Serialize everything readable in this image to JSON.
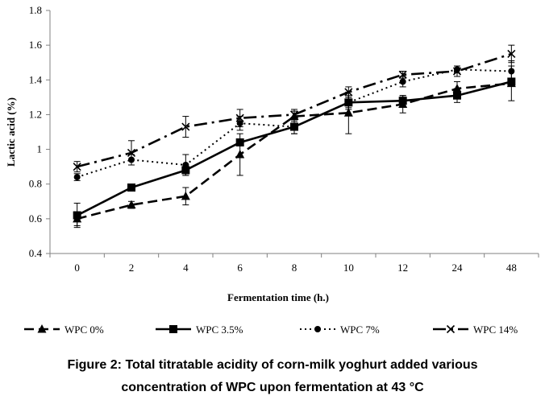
{
  "chart_data": {
    "type": "line",
    "title": "",
    "xlabel": "Fermentation time (h.)",
    "ylabel": "Lactic acid (%)",
    "categories": [
      "0",
      "2",
      "4",
      "6",
      "8",
      "10",
      "12",
      "24",
      "48"
    ],
    "yticks": [
      "0.4",
      "0.6",
      "0.8",
      "1",
      "1.2",
      "1.4",
      "1.6",
      "1.8"
    ],
    "ylim": [
      0.4,
      1.8
    ],
    "grid": false,
    "legend_position": "bottom",
    "series": [
      {
        "name": "WPC 0%",
        "marker": "triangle",
        "dash": "dashed",
        "values": [
          0.6,
          0.68,
          0.73,
          0.97,
          1.19,
          1.21,
          1.26,
          1.35,
          1.38
        ],
        "errors": [
          0.04,
          0.02,
          0.05,
          0.12,
          0.03,
          0.12,
          0.05,
          0.04,
          0.1
        ]
      },
      {
        "name": "WPC 3.5%",
        "marker": "square",
        "dash": "solid",
        "values": [
          0.62,
          0.78,
          0.88,
          1.04,
          1.13,
          1.27,
          1.28,
          1.31,
          1.39
        ],
        "errors": [
          0.07,
          0.0,
          0.03,
          0.0,
          0.04,
          0.03,
          0.03,
          0.04,
          0.02
        ]
      },
      {
        "name": "WPC 7%",
        "marker": "circle",
        "dash": "dotted",
        "values": [
          0.84,
          0.94,
          0.91,
          1.15,
          1.13,
          1.27,
          1.39,
          1.46,
          1.45
        ],
        "errors": [
          0.02,
          0.03,
          0.06,
          0.04,
          0.04,
          0.04,
          0.03,
          0.02,
          0.06
        ]
      },
      {
        "name": "WPC 14%",
        "marker": "x",
        "dash": "dashdot",
        "values": [
          0.9,
          0.98,
          1.13,
          1.18,
          1.2,
          1.33,
          1.43,
          1.45,
          1.55
        ],
        "errors": [
          0.03,
          0.07,
          0.06,
          0.05,
          0.03,
          0.03,
          0.02,
          0.03,
          0.05
        ]
      }
    ]
  },
  "caption": {
    "line1": "Figure 2: Total titratable acidity of corn-milk yoghurt added various",
    "line2": "concentration of WPC upon fermentation at 43 °C"
  }
}
